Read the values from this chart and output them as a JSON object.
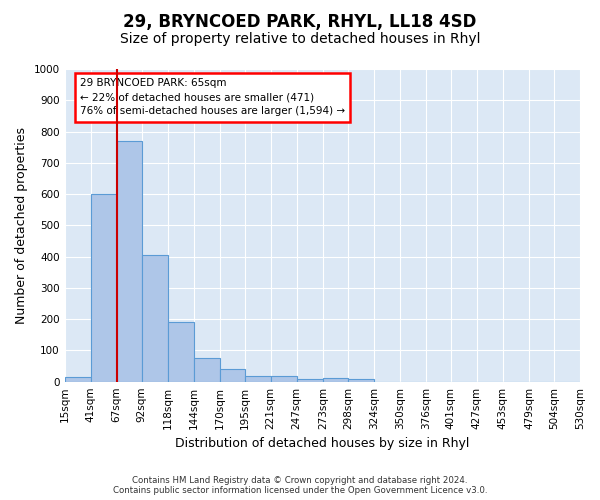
{
  "title": "29, BRYNCOED PARK, RHYL, LL18 4SD",
  "subtitle": "Size of property relative to detached houses in Rhyl",
  "xlabel": "Distribution of detached houses by size in Rhyl",
  "ylabel": "Number of detached properties",
  "bin_edges": [
    "15sqm",
    "41sqm",
    "67sqm",
    "92sqm",
    "118sqm",
    "144sqm",
    "170sqm",
    "195sqm",
    "221sqm",
    "247sqm",
    "273sqm",
    "298sqm",
    "324sqm",
    "350sqm",
    "376sqm",
    "401sqm",
    "427sqm",
    "453sqm",
    "479sqm",
    "504sqm",
    "530sqm"
  ],
  "bar_heights": [
    15,
    600,
    770,
    405,
    190,
    77,
    40,
    18,
    17,
    10,
    13,
    8,
    0,
    0,
    0,
    0,
    0,
    0,
    0,
    0
  ],
  "bar_color": "#aec6e8",
  "bar_edge_color": "#5b9bd5",
  "vline_x": 67,
  "vline_color": "#cc0000",
  "ylim": [
    0,
    1000
  ],
  "yticks": [
    0,
    100,
    200,
    300,
    400,
    500,
    600,
    700,
    800,
    900,
    1000
  ],
  "annotation_text": "29 BRYNCOED PARK: 65sqm\n← 22% of detached houses are smaller (471)\n76% of semi-detached houses are larger (1,594) →",
  "footer_line1": "Contains HM Land Registry data © Crown copyright and database right 2024.",
  "footer_line2": "Contains public sector information licensed under the Open Government Licence v3.0.",
  "bg_color": "#dce8f5",
  "title_fontsize": 12,
  "subtitle_fontsize": 10,
  "axis_label_fontsize": 9,
  "tick_fontsize": 7.5
}
